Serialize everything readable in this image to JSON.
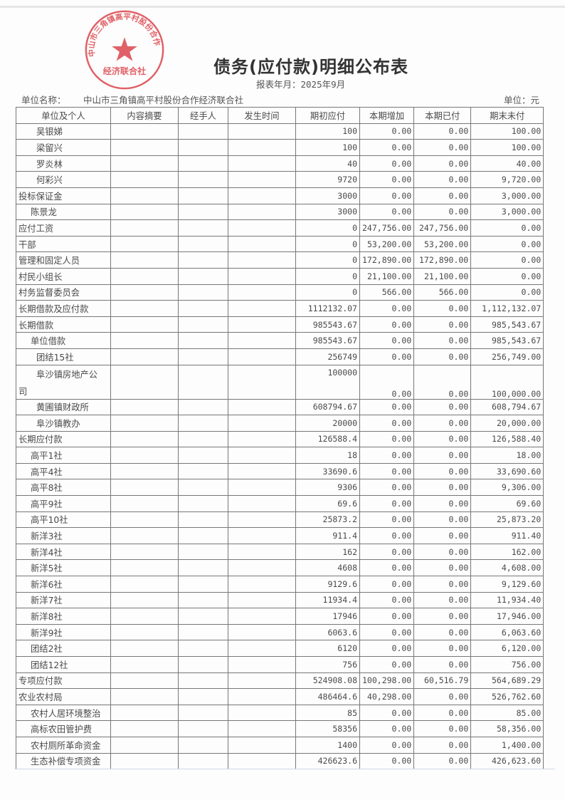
{
  "title": "债务(应付款)明细公布表",
  "period": "报表年月：2025年9月",
  "unit_label": "单位名称：",
  "unit_name": "中山市三角镇高平村股份合作经济联合社",
  "currency_unit": "单位：元",
  "stamp": {
    "text": "中山市三角镇高平村股份合作",
    "bottom_text": "经济联合社",
    "color": "#d9363e"
  },
  "columns": [
    "单位及个人",
    "内容摘要",
    "经手人",
    "发生时间",
    "期初应付",
    "本期增加",
    "本期已付",
    "期末未付"
  ],
  "rows": [
    {
      "name": "吴银娣",
      "level": 2,
      "opening": "100",
      "increase": "0.00",
      "paid": "0.00",
      "closing": "100.00"
    },
    {
      "name": "梁留兴",
      "level": 2,
      "opening": "100",
      "increase": "0.00",
      "paid": "0.00",
      "closing": "100.00"
    },
    {
      "name": "罗炎林",
      "level": 2,
      "opening": "40",
      "increase": "0.00",
      "paid": "0.00",
      "closing": "40.00"
    },
    {
      "name": "何彩兴",
      "level": 2,
      "opening": "9720",
      "increase": "0.00",
      "paid": "0.00",
      "closing": "9,720.00"
    },
    {
      "name": "投标保证金",
      "level": 0,
      "opening": "3000",
      "increase": "0.00",
      "paid": "0.00",
      "closing": "3,000.00"
    },
    {
      "name": "陈景龙",
      "level": 1,
      "opening": "3000",
      "increase": "0.00",
      "paid": "0.00",
      "closing": "3,000.00"
    },
    {
      "name": "应付工资",
      "level": 0,
      "opening": "0",
      "increase": "247,756.00",
      "paid": "247,756.00",
      "closing": "0.00"
    },
    {
      "name": "干部",
      "level": 0,
      "opening": "0",
      "increase": "53,200.00",
      "paid": "53,200.00",
      "closing": "0.00"
    },
    {
      "name": "管理和固定人员",
      "level": 0,
      "opening": "0",
      "increase": "172,890.00",
      "paid": "172,890.00",
      "closing": "0.00"
    },
    {
      "name": "村民小组长",
      "level": 0,
      "opening": "0",
      "increase": "21,100.00",
      "paid": "21,100.00",
      "closing": "0.00"
    },
    {
      "name": "村务监督委员会",
      "level": 0,
      "opening": "0",
      "increase": "566.00",
      "paid": "566.00",
      "closing": "0.00"
    },
    {
      "name": "长期借款及应付款",
      "level": 0,
      "opening": "1112132.07",
      "increase": "0.00",
      "paid": "0.00",
      "closing": "1,112,132.07"
    },
    {
      "name": "长期借款",
      "level": 0,
      "opening": "985543.67",
      "increase": "0.00",
      "paid": "0.00",
      "closing": "985,543.67"
    },
    {
      "name": "单位借款",
      "level": 1,
      "opening": "985543.67",
      "increase": "0.00",
      "paid": "0.00",
      "closing": "985,543.67"
    },
    {
      "name": "团结15社",
      "level": 2,
      "opening": "256749",
      "increase": "0.00",
      "paid": "0.00",
      "closing": "256,749.00"
    },
    {
      "name": "阜沙镇房地产公",
      "name_cont": "司",
      "level": 2,
      "double": true,
      "opening": "100000",
      "increase": "0.00",
      "paid": "0.00",
      "closing": "100,000.00"
    },
    {
      "name": "黄圃镇财政所",
      "level": 2,
      "opening": "608794.67",
      "increase": "0.00",
      "paid": "0.00",
      "closing": "608,794.67"
    },
    {
      "name": "阜沙镇教办",
      "level": 2,
      "opening": "20000",
      "increase": "0.00",
      "paid": "0.00",
      "closing": "20,000.00"
    },
    {
      "name": "长期应付款",
      "level": 0,
      "opening": "126588.4",
      "increase": "0.00",
      "paid": "0.00",
      "closing": "126,588.40"
    },
    {
      "name": "高平1社",
      "level": 1,
      "opening": "18",
      "increase": "0.00",
      "paid": "0.00",
      "closing": "18.00"
    },
    {
      "name": "高平4社",
      "level": 1,
      "opening": "33690.6",
      "increase": "0.00",
      "paid": "0.00",
      "closing": "33,690.60"
    },
    {
      "name": "高平8社",
      "level": 1,
      "opening": "9306",
      "increase": "0.00",
      "paid": "0.00",
      "closing": "9,306.00"
    },
    {
      "name": "高平9社",
      "level": 1,
      "opening": "69.6",
      "increase": "0.00",
      "paid": "0.00",
      "closing": "69.60"
    },
    {
      "name": "高平10社",
      "level": 1,
      "opening": "25873.2",
      "increase": "0.00",
      "paid": "0.00",
      "closing": "25,873.20"
    },
    {
      "name": "新洋3社",
      "level": 1,
      "opening": "911.4",
      "increase": "0.00",
      "paid": "0.00",
      "closing": "911.40"
    },
    {
      "name": "新洋4社",
      "level": 1,
      "opening": "162",
      "increase": "0.00",
      "paid": "0.00",
      "closing": "162.00"
    },
    {
      "name": "新洋5社",
      "level": 1,
      "opening": "4608",
      "increase": "0.00",
      "paid": "0.00",
      "closing": "4,608.00"
    },
    {
      "name": "新洋6社",
      "level": 1,
      "opening": "9129.6",
      "increase": "0.00",
      "paid": "0.00",
      "closing": "9,129.60"
    },
    {
      "name": "新洋7社",
      "level": 1,
      "opening": "11934.4",
      "increase": "0.00",
      "paid": "0.00",
      "closing": "11,934.40"
    },
    {
      "name": "新洋8社",
      "level": 1,
      "opening": "17946",
      "increase": "0.00",
      "paid": "0.00",
      "closing": "17,946.00"
    },
    {
      "name": "新洋9社",
      "level": 1,
      "opening": "6063.6",
      "increase": "0.00",
      "paid": "0.00",
      "closing": "6,063.60"
    },
    {
      "name": "团结2社",
      "level": 1,
      "opening": "6120",
      "increase": "0.00",
      "paid": "0.00",
      "closing": "6,120.00"
    },
    {
      "name": "团结12社",
      "level": 1,
      "opening": "756",
      "increase": "0.00",
      "paid": "0.00",
      "closing": "756.00"
    },
    {
      "name": "专项应付款",
      "level": 0,
      "opening": "524908.08",
      "increase": "100,298.00",
      "paid": "60,516.79",
      "closing": "564,689.29"
    },
    {
      "name": "农业农村局",
      "level": 0,
      "opening": "486464.6",
      "increase": "40,298.00",
      "paid": "0.00",
      "closing": "526,762.60"
    },
    {
      "name": "农村人居环境整治",
      "level": 1,
      "opening": "85",
      "increase": "0.00",
      "paid": "0.00",
      "closing": "85.00"
    },
    {
      "name": "高标农田管护费",
      "level": 1,
      "opening": "58356",
      "increase": "0.00",
      "paid": "0.00",
      "closing": "58,356.00"
    },
    {
      "name": "农村厕所革命资金",
      "level": 1,
      "opening": "1400",
      "increase": "0.00",
      "paid": "0.00",
      "closing": "1,400.00"
    },
    {
      "name": "生态补偿专项资金",
      "level": 1,
      "opening": "426623.6",
      "increase": "0.00",
      "paid": "0.00",
      "closing": "426,623.60"
    }
  ]
}
